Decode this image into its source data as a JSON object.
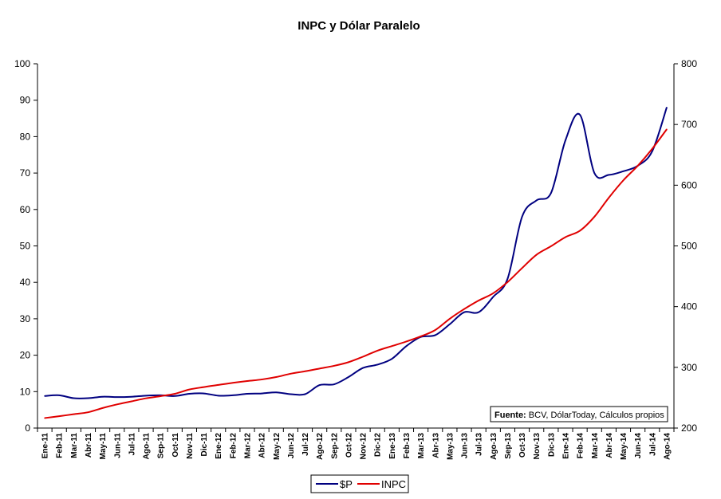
{
  "chart_data": {
    "type": "line",
    "title": "INPC y Dólar Paralelo",
    "categories": [
      "Ene-11",
      "Feb-11",
      "Mar-11",
      "Abr-11",
      "May-11",
      "Jun-11",
      "Jul-11",
      "Ago-11",
      "Sep-11",
      "Oct-11",
      "Nov-11",
      "Dic-11",
      "Ene-12",
      "Feb-12",
      "Mar-12",
      "Abr-12",
      "May-12",
      "Jun-12",
      "Jul-12",
      "Ago-12",
      "Sep-12",
      "Oct-12",
      "Nov-12",
      "Dic-12",
      "Ene-13",
      "Feb-13",
      "Mar-13",
      "Abr-13",
      "May-13",
      "Jun-13",
      "Jul-13",
      "Ago-13",
      "Sep-13",
      "Oct-13",
      "Nov-13",
      "Dic-13",
      "Ene-14",
      "Feb-14",
      "Mar-14",
      "Abr-14",
      "May-14",
      "Jun-14",
      "Jul-14",
      "Ago-14"
    ],
    "y_left": {
      "ylim": [
        0,
        100
      ],
      "ticks": [
        0,
        10,
        20,
        30,
        40,
        50,
        60,
        70,
        80,
        90,
        100
      ]
    },
    "y_right": {
      "ylim": [
        200,
        800
      ],
      "ticks": [
        200,
        300,
        400,
        500,
        600,
        700,
        800
      ]
    },
    "series": [
      {
        "name": "$P",
        "axis": "left",
        "color": "#000080",
        "values": [
          8.8,
          9.0,
          8.2,
          8.2,
          8.6,
          8.5,
          8.6,
          8.9,
          9.0,
          8.8,
          9.4,
          9.5,
          8.9,
          9.0,
          9.4,
          9.5,
          9.8,
          9.3,
          9.3,
          11.8,
          12.0,
          14.0,
          16.5,
          17.4,
          19.0,
          22.5,
          25.0,
          25.5,
          28.5,
          31.8,
          31.8,
          36.0,
          41.0,
          58.0,
          62.5,
          64.5,
          79.0,
          86.0,
          70.0,
          69.5,
          70.5,
          72.0,
          76.0,
          88.0
        ]
      },
      {
        "name": "INPC",
        "axis": "right",
        "color": "#e00000",
        "values": [
          216.5,
          219.5,
          222.8,
          226.0,
          233.0,
          239.0,
          244.0,
          249.0,
          252.5,
          256.5,
          263.5,
          267.5,
          271.0,
          274.5,
          277.5,
          280.0,
          284.0,
          289.5,
          293.5,
          298.0,
          302.5,
          308.5,
          317.5,
          327.5,
          335.0,
          342.5,
          351.0,
          361.5,
          380.0,
          396.0,
          410.0,
          422.0,
          440.5,
          463.5,
          485.5,
          499.5,
          514.5,
          525.0,
          548.0,
          579.5,
          608.0,
          632.0,
          660.0,
          692.0
        ]
      }
    ],
    "grid": false,
    "legend": "bottom",
    "annotation": {
      "bold": "Fuente:",
      "text": " BCV, DólarToday, Cálculos propios"
    }
  }
}
